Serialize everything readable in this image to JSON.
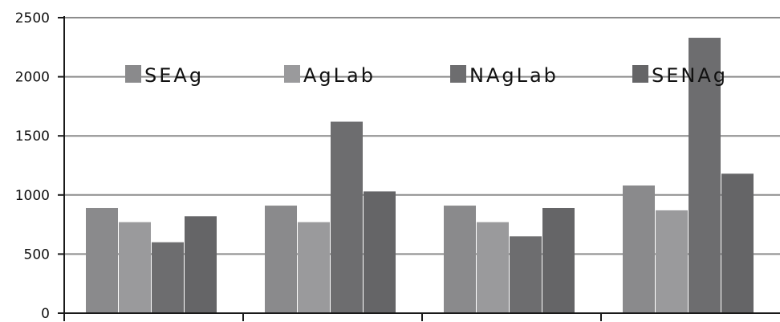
{
  "chart_data": {
    "type": "bar",
    "categories": [
      "",
      "",
      "",
      ""
    ],
    "series": [
      {
        "name": "SEAg",
        "values": [
          890,
          910,
          910,
          1080
        ],
        "color": "#8a8a8c"
      },
      {
        "name": "AgLab",
        "values": [
          770,
          770,
          770,
          870
        ],
        "color": "#9a9a9c"
      },
      {
        "name": "NAgLab",
        "values": [
          600,
          1620,
          650,
          2330
        ],
        "color": "#6d6d6f"
      },
      {
        "name": "SENAg",
        "values": [
          820,
          1030,
          890,
          1180
        ],
        "color": "#656567"
      }
    ],
    "y_ticks": [
      "0",
      "500",
      "1000",
      "1500",
      "2000",
      "2500"
    ],
    "ylim": [
      0,
      2500
    ],
    "grid": true,
    "legend_placement": "top-inside",
    "title": "",
    "xlabel": "",
    "ylabel": ""
  }
}
